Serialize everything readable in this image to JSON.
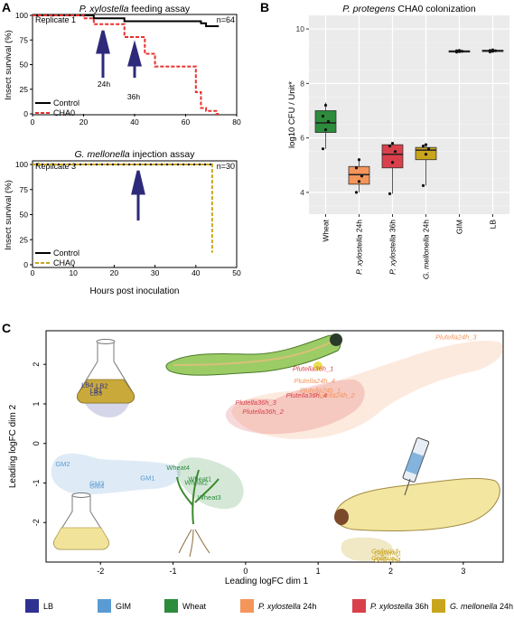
{
  "panel_labels": {
    "a": "A",
    "b": "B",
    "c": "C"
  },
  "panel_a": {
    "top": {
      "title": "P. xylostella feeding assay",
      "title_species": "P. xylostella",
      "title_rest": " feeding assay",
      "replicate": "Replicate 1",
      "n": "n=64",
      "ylabel": "Insect survival (%)",
      "arrow_24": "24h",
      "arrow_36": "36h",
      "legend": [
        "Control",
        "CHA0"
      ]
    },
    "bottom": {
      "title_species": "G. mellonella",
      "title_rest": " injection assay",
      "replicate": "Replicate 3",
      "n": "n=30",
      "ylabel": "Insect survival (%)",
      "xlabel": "Hours post inoculation",
      "legend": [
        "Control",
        "CHA0"
      ]
    }
  },
  "panel_b": {
    "title_species": "P. protegens",
    "title_rest": " CHA0 colonization",
    "ylabel": "log10 CFU / Unit*"
  },
  "panel_c": {
    "xlabel": "Leading logFC dim 1",
    "ylabel": "Leading logFC dim 2"
  },
  "legend_c": [
    {
      "label": "LB",
      "color": "#2e3192"
    },
    {
      "label": "GIM",
      "color": "#5a9bd3"
    },
    {
      "label": "Wheat",
      "color": "#2d8b3c"
    },
    {
      "label": "P. xylostella 24h",
      "italic": "P. xylostella",
      "rest": " 24h",
      "color": "#f4955a"
    },
    {
      "label": "P. xylostella 36h",
      "italic": "P. xylostella",
      "rest": " 36h",
      "color": "#d9404b"
    },
    {
      "label": "G. mellonella 24h",
      "italic": "G. mellonella",
      "rest": " 24h",
      "color": "#c9a51d"
    }
  ],
  "chart_data": [
    {
      "type": "line",
      "title": "P. xylostella feeding assay",
      "xlabel": "",
      "ylabel": "Insect survival (%)",
      "xlim": [
        0,
        80
      ],
      "ylim": [
        0,
        100
      ],
      "xticks": [
        0,
        20,
        40,
        60,
        80
      ],
      "yticks": [
        0,
        25,
        50,
        75,
        100
      ],
      "annotations": [
        "Replicate 1",
        "n=64",
        "24h",
        "36h"
      ],
      "series": [
        {
          "name": "Control",
          "color": "#000000",
          "dash": false,
          "x": [
            0,
            24,
            24,
            36,
            36,
            66,
            66,
            68,
            68,
            73
          ],
          "y": [
            100,
            100,
            97,
            97,
            94,
            94,
            92,
            92,
            89,
            89
          ]
        },
        {
          "name": "CHA0",
          "color": "#e8312f",
          "dash": true,
          "x": [
            0,
            20,
            20,
            24,
            24,
            36,
            36,
            44,
            44,
            48,
            48,
            64,
            64,
            66,
            66,
            68,
            68,
            72,
            72,
            73
          ],
          "y": [
            100,
            100,
            97,
            97,
            91,
            91,
            78,
            78,
            61,
            61,
            48,
            48,
            22,
            22,
            6,
            6,
            3,
            3,
            0,
            0
          ]
        }
      ]
    },
    {
      "type": "line",
      "title": "G. mellonella injection assay",
      "xlabel": "Hours post inoculation",
      "ylabel": "Insect survival (%)",
      "xlim": [
        0,
        50
      ],
      "ylim": [
        0,
        100
      ],
      "xticks": [
        0,
        10,
        20,
        30,
        40,
        50
      ],
      "yticks": [
        0,
        25,
        50,
        75,
        100
      ],
      "annotations": [
        "Replicate 3",
        "n=30"
      ],
      "series": [
        {
          "name": "Control",
          "color": "#000000",
          "dash": false,
          "x": [
            0,
            44
          ],
          "y": [
            100,
            100
          ]
        },
        {
          "name": "CHA0",
          "color": "#c9a51d",
          "dash": true,
          "x": [
            0,
            44,
            44
          ],
          "y": [
            100,
            100,
            12
          ]
        }
      ]
    },
    {
      "type": "box",
      "title": "P. protegens CHA0 colonization",
      "ylabel": "log10 CFU / Unit*",
      "ylim": [
        3.2,
        10.5
      ],
      "yticks": [
        4,
        6,
        8,
        10
      ],
      "categories": [
        "Wheat",
        "P. xylostella 24h",
        "P. xylostella 36h",
        "G. mellonella 24h",
        "GIM",
        "LB"
      ],
      "series": [
        {
          "name": "Wheat",
          "color": "#2d8b3c",
          "min": 5.6,
          "q1": 6.2,
          "median": 6.55,
          "q3": 7.0,
          "max": 7.3,
          "points": [
            5.6,
            6.3,
            6.6,
            6.8,
            7.2
          ]
        },
        {
          "name": "P. xylostella 24h",
          "color": "#f4955a",
          "min": 4.0,
          "q1": 4.3,
          "median": 4.65,
          "q3": 4.95,
          "max": 5.25,
          "points": [
            4.0,
            4.4,
            4.6,
            4.9,
            5.2
          ]
        },
        {
          "name": "P. xylostella 36h",
          "color": "#d9404b",
          "min": 3.95,
          "q1": 4.9,
          "median": 5.4,
          "q3": 5.75,
          "max": 5.8,
          "points": [
            3.95,
            5.1,
            5.5,
            5.7,
            5.8
          ]
        },
        {
          "name": "G. mellonella 24h",
          "color": "#c9a51d",
          "min": 4.25,
          "q1": 5.2,
          "median": 5.55,
          "q3": 5.65,
          "max": 5.75,
          "points": [
            4.25,
            5.4,
            5.6,
            5.7,
            5.75
          ]
        },
        {
          "name": "GIM",
          "color": "#5a9bd3",
          "min": 9.14,
          "q1": 9.16,
          "median": 9.18,
          "q3": 9.2,
          "max": 9.22,
          "points": [
            9.15,
            9.17,
            9.18,
            9.2,
            9.21
          ]
        },
        {
          "name": "LB",
          "color": "#2e3192",
          "min": 9.15,
          "q1": 9.17,
          "median": 9.2,
          "q3": 9.22,
          "max": 9.24,
          "points": [
            9.16,
            9.18,
            9.2,
            9.21,
            9.23
          ]
        }
      ]
    },
    {
      "type": "scatter",
      "xlabel": "Leading logFC dim 1",
      "ylabel": "Leading logFC dim 2",
      "xlim": [
        -2.75,
        3.55
      ],
      "ylim": [
        -3.0,
        2.85
      ],
      "xticks": [
        -2,
        -1,
        0,
        1,
        2,
        3
      ],
      "yticks": [
        -2,
        -1,
        0,
        1,
        2
      ],
      "points": [
        {
          "label": "LB4",
          "group": "LB",
          "x": -2.18,
          "y": 1.42
        },
        {
          "label": "LB2",
          "group": "LB",
          "x": -1.98,
          "y": 1.4
        },
        {
          "label": "LB1",
          "group": "LB",
          "x": -2.06,
          "y": 1.28
        },
        {
          "label": "LB3",
          "group": "LB",
          "x": -2.06,
          "y": 1.22
        },
        {
          "label": "GM2",
          "group": "GIM",
          "x": -2.52,
          "y": -0.58
        },
        {
          "label": "GM1",
          "group": "GIM",
          "x": -1.35,
          "y": -0.93
        },
        {
          "label": "GM3",
          "group": "GIM",
          "x": -2.05,
          "y": -1.07
        },
        {
          "label": "GM4",
          "group": "GIM",
          "x": -2.05,
          "y": -1.14
        },
        {
          "label": "Wheat4",
          "group": "Wheat",
          "x": -0.93,
          "y": -0.67
        },
        {
          "label": "Wheat1",
          "group": "Wheat",
          "x": -0.63,
          "y": -0.95
        },
        {
          "label": "Wheat2",
          "group": "Wheat",
          "x": -0.68,
          "y": -1.05
        },
        {
          "label": "Wheat3",
          "group": "Wheat",
          "x": -0.5,
          "y": -1.42
        },
        {
          "label": "Plutella24h_3",
          "group": "P. xylostella 24h",
          "x": 2.9,
          "y": 2.63
        },
        {
          "label": "Plutella24h_4",
          "group": "P. xylostella 24h",
          "x": 0.95,
          "y": 1.53
        },
        {
          "label": "Plutella24h_1",
          "group": "P. xylostella 24h",
          "x": 1.03,
          "y": 1.28
        },
        {
          "label": "Plutella24h_2",
          "group": "P. xylostella 24h",
          "x": 1.22,
          "y": 1.16
        },
        {
          "label": "Plutella36h_1",
          "group": "P. xylostella 36h",
          "x": 0.93,
          "y": 1.83
        },
        {
          "label": "Plutella36h_4",
          "group": "P. xylostella 36h",
          "x": 0.84,
          "y": 1.16
        },
        {
          "label": "Plutella36h_3",
          "group": "P. xylostella 36h",
          "x": 0.14,
          "y": 0.98
        },
        {
          "label": "Plutella36h_2",
          "group": "P. xylostella 36h",
          "x": 0.24,
          "y": 0.75
        },
        {
          "label": "Galleria3",
          "group": "G. mellonella 24h",
          "x": 1.92,
          "y": -2.78
        },
        {
          "label": "Galleria1",
          "group": "G. mellonella 24h",
          "x": 1.96,
          "y": -2.83
        },
        {
          "label": "Galleria2",
          "group": "G. mellonella 24h",
          "x": 1.92,
          "y": -2.95
        },
        {
          "label": "Galleria4",
          "group": "G. mellonella 24h",
          "x": 1.95,
          "y": -3.0
        }
      ]
    }
  ]
}
